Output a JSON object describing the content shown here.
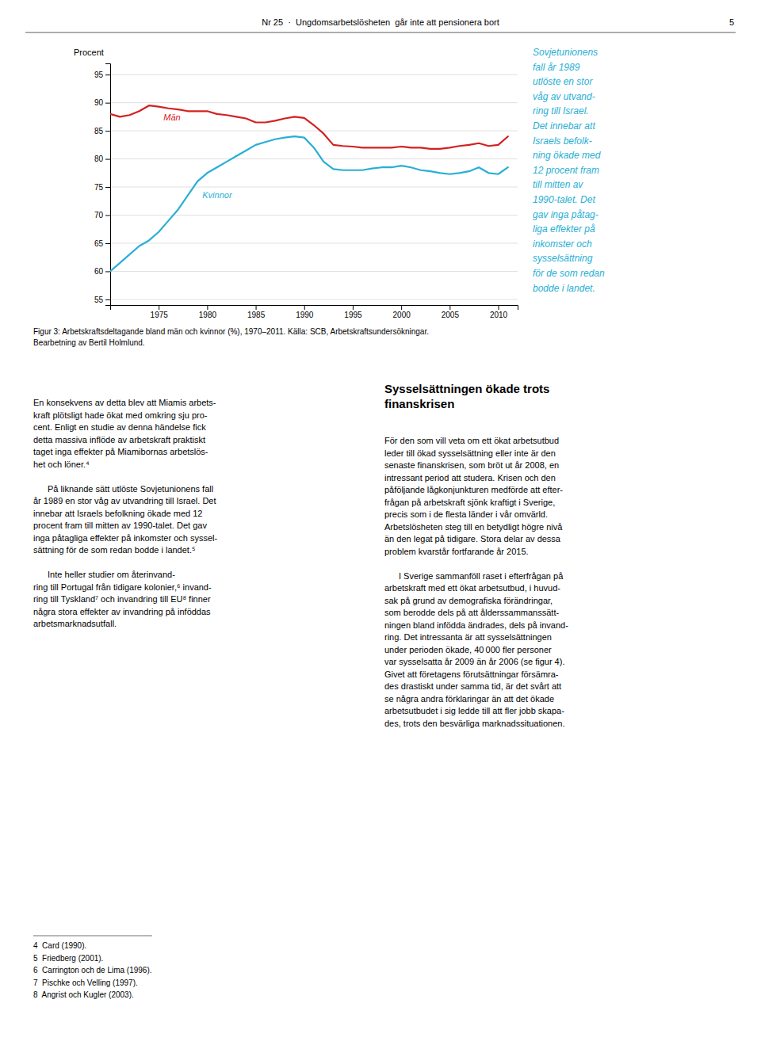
{
  "header": "Nr 25  ·  Ungdomsarbetslösheten  går inte att pensionera bort",
  "page_number": "5",
  "sidebar_color": "#29afd4",
  "sidebar": [
    "Sovjetunionens",
    "fall år 1989",
    "utlöste en stor",
    "våg av utvand-",
    "ring till Israel.",
    "Det innebar att",
    "Israels befolk-",
    "ning ökade med",
    "12 procent fram",
    "till mitten av",
    "1990-talet. Det",
    "gav inga påtag-",
    "liga effekter på",
    "inkomster och",
    "sysselsättning",
    "för de som redan",
    "bodde i landet."
  ],
  "left_column": [
    [
      "En konsekvens av detta blev att Miamis arbets-",
      "kraft plötsligt hade ökat med omkring sju pro-",
      "cent. Enligt en studie av denna händelse fick",
      "detta massiva inflöde av arbetskraft praktiskt",
      "taget inga effekter på Miamibornas arbetslös-",
      "het och löner.⁴"
    ],
    [
      "På liknande sätt utlöste Sovjetunionens fall",
      "år 1989 en stor våg av utvandring till Israel. Det",
      "innebar att Israels befolkning ökade med 12",
      "procent fram till mitten av 1990-talet. Det gav",
      "inga påtagliga effekter på inkomster och syssel-",
      "sättning för de som redan bodde i landet.⁵"
    ],
    [
      "Inte heller studier om återinvand-",
      "ring till Portugal från tidigare kolonier,⁶ invand-",
      "ring till Tyskland⁷ och invandring till EU⁸ finner",
      "några stora effekter av invandring på inföddas",
      "arbetsmarknadsutfall."
    ]
  ],
  "right_heading": [
    "Sysselsättningen ökade trots",
    "finanskrisen"
  ],
  "right_column": [
    [
      "För den som vill veta om ett ökat arbetsutbud",
      "leder till ökad sysselsättning eller inte är den",
      "senaste finanskrisen, som bröt ut år 2008, en",
      "intressant period att studera. Krisen och den",
      "påföljande lågkonjunkturen medförde att efter-",
      "frågan på arbetskraft sjönk kraftigt i Sverige,",
      "precis som i de flesta länder i vår omvärld.",
      "Arbetslösheten steg till en betydligt högre nivå",
      "än den legat på tidigare. Stora delar av dessa",
      "problem kvarstår fortfarande år 2015."
    ],
    [
      "I Sverige sammanföll raset i efterfrågan på",
      "arbetskraft med ett ökat arbetsutbud, i huvud-",
      "sak på grund av demografiska förändringar,",
      "som berodde dels på att ålderssammanssätt-",
      "ningen bland infödda ändrades, dels på invand-",
      "ring. Det intressanta är att sysselsättningen",
      "under perioden ökade, 40 000 fler personer",
      "var sysselsatta år 2009 än år 2006 (se figur 4).",
      "Givet att företagens förutsättningar försämra-",
      "des drastiskt under samma tid, är det svårt att",
      "se några andra förklaringar än att det ökade",
      "arbetsutbudet i sig ledde till att fler jobb skapa-",
      "des, trots den besvärliga marknadssituationen."
    ]
  ],
  "footnotes": [
    "4  Card (1990).",
    "5  Friedberg (2001).",
    "6  Carrington och de Lima (1996).",
    "7  Pischke och Velling (1997).",
    "8  Angrist och Kugler (2003)."
  ],
  "chart_data": {
    "type": "line",
    "y_label": "Procent",
    "caption": [
      "Figur 3: Arbetskraftsdeltagande bland män och kvinnor (%), 1970–2011. Källa: SCB, Arbetskraftsundersökningar.",
      "Bearbetning av Bertil Holmlund."
    ],
    "x": [
      1970,
      1971,
      1972,
      1973,
      1974,
      1975,
      1976,
      1977,
      1978,
      1979,
      1980,
      1981,
      1982,
      1983,
      1984,
      1985,
      1986,
      1987,
      1988,
      1989,
      1990,
      1991,
      1992,
      1993,
      1994,
      1995,
      1996,
      1997,
      1998,
      1999,
      2000,
      2001,
      2002,
      2003,
      2004,
      2005,
      2006,
      2007,
      2008,
      2009,
      2010,
      2011
    ],
    "series": [
      {
        "name": "Män",
        "color": "#d42020",
        "values": [
          88.0,
          87.5,
          87.8,
          88.5,
          89.5,
          89.3,
          89.0,
          88.8,
          88.5,
          88.5,
          88.5,
          88.0,
          87.8,
          87.5,
          87.2,
          86.5,
          86.5,
          86.8,
          87.2,
          87.5,
          87.3,
          86.0,
          84.5,
          82.5,
          82.3,
          82.2,
          82.0,
          82.0,
          82.0,
          82.0,
          82.2,
          82.0,
          82.0,
          81.8,
          81.8,
          82.0,
          82.3,
          82.5,
          82.8,
          82.3,
          82.5,
          84.0
        ]
      },
      {
        "name": "Kvinnor",
        "color": "#29afd4",
        "values": [
          60.0,
          61.5,
          63.0,
          64.5,
          65.5,
          67.0,
          69.0,
          71.0,
          73.5,
          76.0,
          77.5,
          78.5,
          79.5,
          80.5,
          81.5,
          82.5,
          83.0,
          83.5,
          83.8,
          84.0,
          83.8,
          82.0,
          79.5,
          78.2,
          78.0,
          78.0,
          78.0,
          78.3,
          78.5,
          78.5,
          78.8,
          78.5,
          78.0,
          77.8,
          77.5,
          77.3,
          77.5,
          77.8,
          78.5,
          77.5,
          77.3,
          78.5
        ]
      }
    ],
    "annotations": [
      {
        "text": "Män",
        "x": 1975.5,
        "y": 86.8,
        "color": "#d42020"
      },
      {
        "text": "Kvinnor",
        "x": 1979.5,
        "y": 73.0,
        "color": "#29afd4"
      }
    ],
    "xlim": [
      1970,
      2012
    ],
    "ylim": [
      54,
      97
    ],
    "xticks": [
      1975,
      1980,
      1985,
      1990,
      1995,
      2000,
      2005,
      2010
    ],
    "yticks": [
      55,
      60,
      65,
      70,
      75,
      80,
      85,
      90,
      95
    ],
    "grid": true
  }
}
